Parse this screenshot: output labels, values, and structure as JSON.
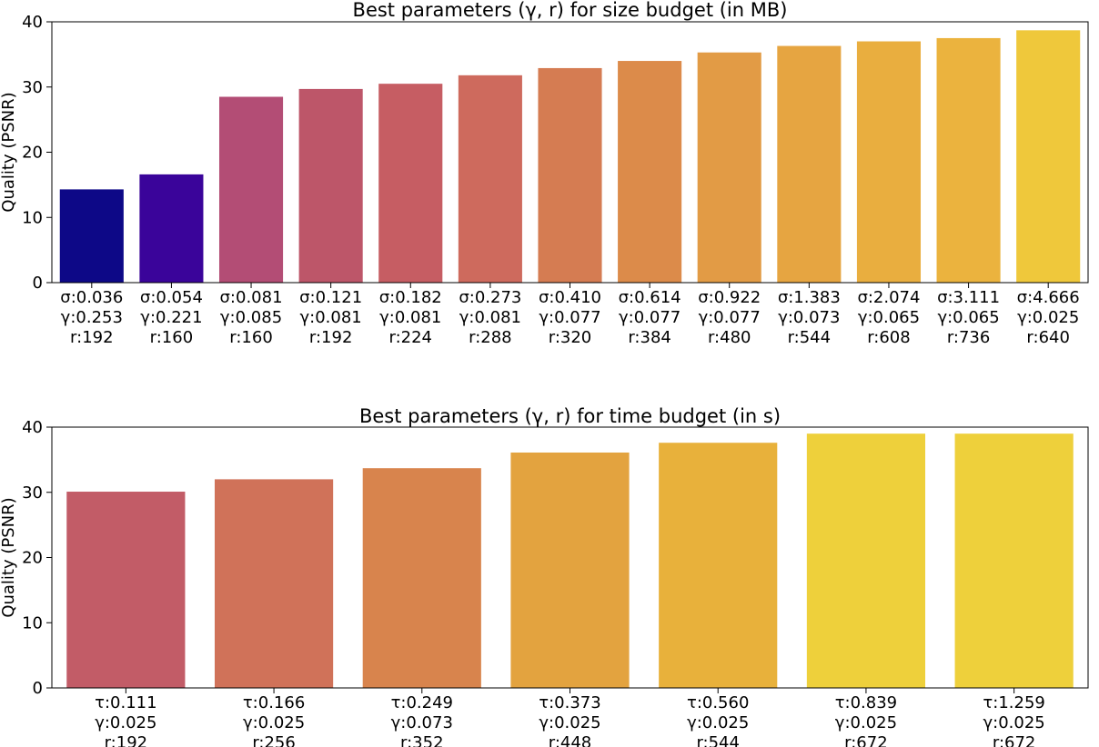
{
  "chart_data": [
    {
      "type": "bar",
      "title": "Best parameters (γ, r) for size budget (in MB)",
      "ylabel": "Quality (PSNR)",
      "ylim": [
        0,
        40
      ],
      "yticks": [
        "0",
        "10",
        "20",
        "30",
        "40"
      ],
      "grid": false,
      "categories": [
        {
          "p1": "σ:0.036",
          "g": "γ:0.253",
          "r": "r:192"
        },
        {
          "p1": "σ:0.054",
          "g": "γ:0.221",
          "r": "r:160"
        },
        {
          "p1": "σ:0.081",
          "g": "γ:0.085",
          "r": "r:160"
        },
        {
          "p1": "σ:0.121",
          "g": "γ:0.081",
          "r": "r:192"
        },
        {
          "p1": "σ:0.182",
          "g": "γ:0.081",
          "r": "r:224"
        },
        {
          "p1": "σ:0.273",
          "g": "γ:0.081",
          "r": "r:288"
        },
        {
          "p1": "σ:0.410",
          "g": "γ:0.077",
          "r": "r:320"
        },
        {
          "p1": "σ:0.614",
          "g": "γ:0.077",
          "r": "r:384"
        },
        {
          "p1": "σ:0.922",
          "g": "γ:0.077",
          "r": "r:480"
        },
        {
          "p1": "σ:1.383",
          "g": "γ:0.073",
          "r": "r:544"
        },
        {
          "p1": "σ:2.074",
          "g": "γ:0.065",
          "r": "r:608"
        },
        {
          "p1": "σ:3.111",
          "g": "γ:0.065",
          "r": "r:736"
        },
        {
          "p1": "σ:4.666",
          "g": "γ:0.025",
          "r": "r:640"
        }
      ],
      "values": [
        14.3,
        16.6,
        28.5,
        29.7,
        30.5,
        31.8,
        32.9,
        34.0,
        35.3,
        36.3,
        37.0,
        37.5,
        38.7
      ],
      "colors": [
        "#0d0887",
        "#3a049a",
        "#b34d75",
        "#bd5669",
        "#c65d63",
        "#ce6a5d",
        "#d57c52",
        "#dc8b4a",
        "#e29b45",
        "#e6a541",
        "#e9ae3f",
        "#ebb33e",
        "#efc83b"
      ]
    },
    {
      "type": "bar",
      "title": "Best parameters (γ, r) for time budget (in s)",
      "ylabel": "Quality (PSNR)",
      "ylim": [
        0,
        40
      ],
      "yticks": [
        "0",
        "10",
        "20",
        "30",
        "40"
      ],
      "grid": false,
      "categories": [
        {
          "p1": "τ:0.111",
          "g": "γ:0.025",
          "r": "r:192"
        },
        {
          "p1": "τ:0.166",
          "g": "γ:0.025",
          "r": "r:256"
        },
        {
          "p1": "τ:0.249",
          "g": "γ:0.073",
          "r": "r:352"
        },
        {
          "p1": "τ:0.373",
          "g": "γ:0.025",
          "r": "r:448"
        },
        {
          "p1": "τ:0.560",
          "g": "γ:0.025",
          "r": "r:544"
        },
        {
          "p1": "τ:0.839",
          "g": "γ:0.025",
          "r": "r:672"
        },
        {
          "p1": "τ:1.259",
          "g": "γ:0.025",
          "r": "r:672"
        }
      ],
      "values": [
        30.1,
        32.0,
        33.7,
        36.1,
        37.6,
        39.0,
        39.0
      ],
      "colors": [
        "#c25c67",
        "#d07259",
        "#d8844d",
        "#e3a33f",
        "#e8b13b",
        "#eed03b",
        "#eed03b"
      ]
    }
  ]
}
